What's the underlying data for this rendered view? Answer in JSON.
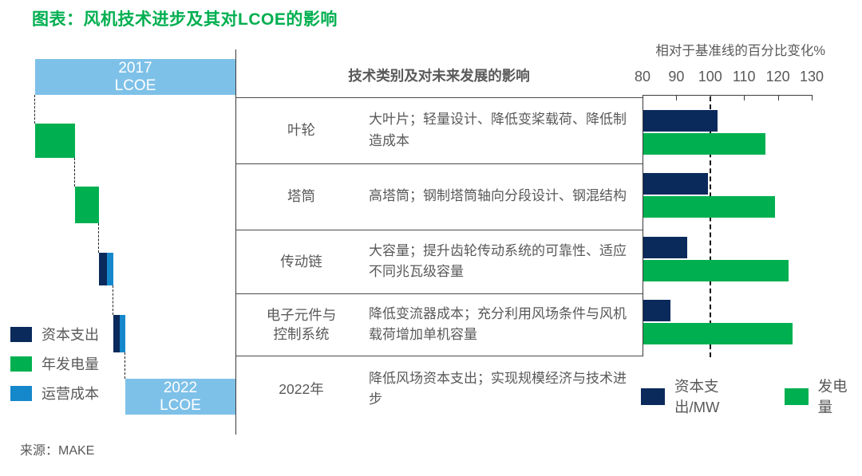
{
  "title": "图表：风机技术进步及其对LCOE的影响",
  "source": "来源：MAKE",
  "waterfall": {
    "start_label": "2017\nLCOE",
    "end_label": "2022\nLCOE",
    "legend": [
      {
        "label": "资本支出",
        "color": "#0A2A5C"
      },
      {
        "label": "年发电量",
        "color": "#00B050"
      },
      {
        "label": "运营成本",
        "color": "#1588CB"
      }
    ]
  },
  "table": {
    "header": "技术类别及对未来发展的影响",
    "rows": [
      {
        "category": "叶轮",
        "description": "大叶片；轻量设计、降低变桨载荷、降低制造成本"
      },
      {
        "category": "塔筒",
        "description": "高塔筒；钢制塔筒轴向分段设计、钢混结构"
      },
      {
        "category": "传动链",
        "description": "大容量；提升齿轮传动系统的可靠性、适应不同兆瓦级容量"
      },
      {
        "category": "电子元件与\n控制系统",
        "description": "降低变流器成本；充分利用风场条件与风机载荷增加单机容量"
      },
      {
        "category": "2022年",
        "description": "降低风场资本支出；实现规模经济与技术进步"
      }
    ]
  },
  "chart_data": [
    {
      "type": "bar",
      "subtype": "waterfall",
      "title": "2017 LCOE 至 2022 LCOE 降本瀑布（图中无数值标注，宽度按像素估算为2017 LCOE的百分比）",
      "segments": [
        {
          "label": "2017 LCOE",
          "kind": "total",
          "approx_pct": 100,
          "color_key": "light_blue"
        },
        {
          "label": "年发电量",
          "kind": "decrease",
          "approx_pct": 20,
          "color_key": "green"
        },
        {
          "label": "年发电量",
          "kind": "decrease",
          "approx_pct": 12,
          "color_key": "green"
        },
        {
          "label": "资本支出/运营成本",
          "kind": "decrease",
          "approx_pct": 7,
          "color_key": "navy_blue_split"
        },
        {
          "label": "资本支出/运营成本",
          "kind": "decrease",
          "approx_pct": 6,
          "color_key": "navy_blue_split"
        },
        {
          "label": "2022 LCOE",
          "kind": "total",
          "approx_pct": 55,
          "color_key": "light_blue"
        }
      ]
    },
    {
      "type": "bar",
      "orientation": "horizontal",
      "categories": [
        "叶轮",
        "塔筒",
        "传动链",
        "电子元件与控制系统"
      ],
      "series": [
        {
          "name": "资本支出/MW",
          "color": "#0A2A5C",
          "values": [
            102,
            99,
            93,
            88
          ]
        },
        {
          "name": "发电量",
          "color": "#00B050",
          "values": [
            116,
            119,
            123,
            124
          ]
        }
      ],
      "xlabel": "相对于基准线的百分比变化%",
      "xlim": [
        80,
        130
      ],
      "xticks": [
        80,
        90,
        100,
        110,
        120,
        130
      ],
      "baseline": 100,
      "grid": false,
      "legend_position": "bottom"
    }
  ],
  "colors": {
    "title_green": "#00AF50",
    "bar_green": "#00B050",
    "navy": "#0A2A5C",
    "light_blue": "#7EC1E8",
    "medium_blue": "#1588CB",
    "text_gray": "#595959",
    "line_dark": "#3A3A3A"
  }
}
